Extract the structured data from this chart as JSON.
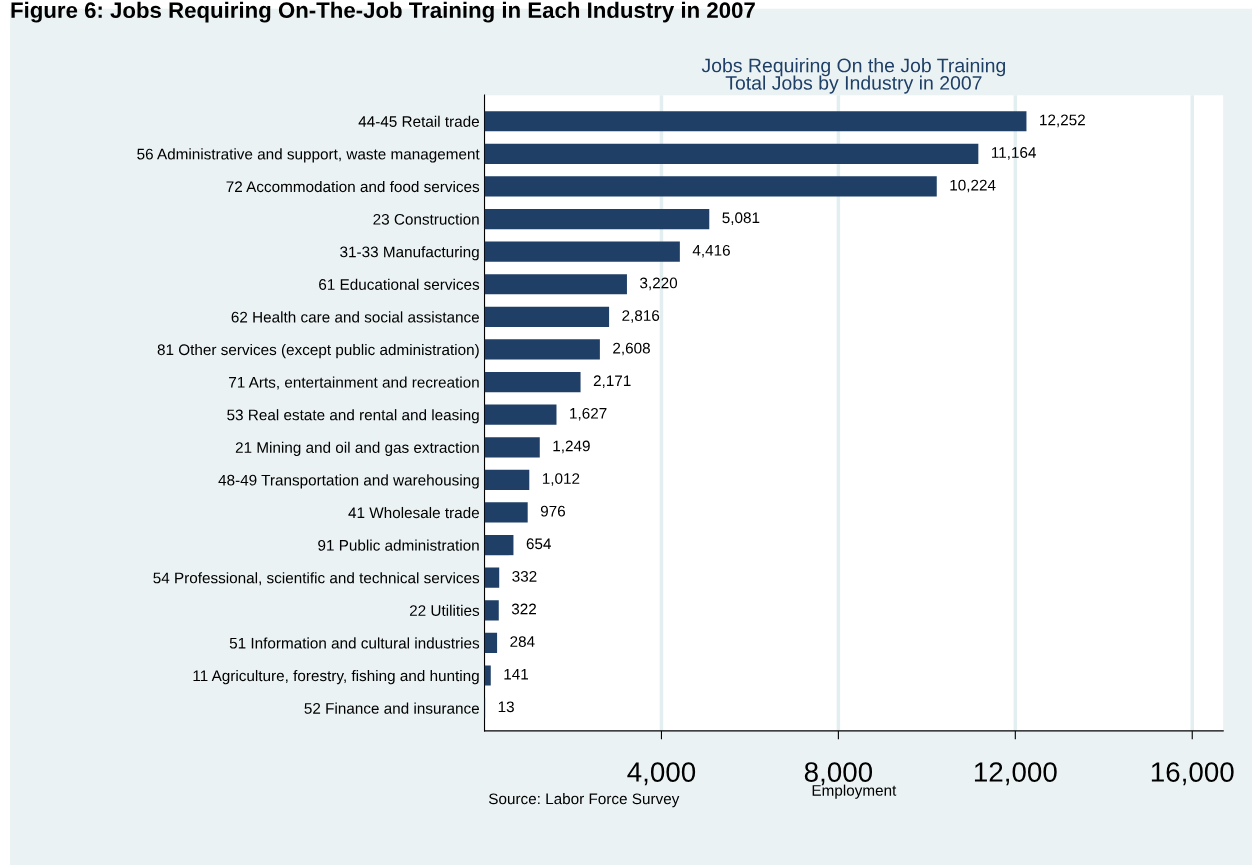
{
  "chart_data": {
    "type": "bar",
    "orientation": "horizontal",
    "title": "Figure 6: Jobs Requiring On-The-Job Training in Each Industry in 2007",
    "subtitle": "Jobs Requiring On the Job Training\nTotal Jobs by Industry in 2007",
    "xlabel": "Employment",
    "categories": [
      "44-45 Retail trade",
      "56 Administrative and support, waste management",
      "72 Accommodation and food services",
      "23 Construction",
      "31-33 Manufacturing",
      "61 Educational services",
      "62 Health care and social assistance",
      "81 Other services (except public administration)",
      "71 Arts, entertainment and recreation",
      "53 Real estate and rental and leasing",
      "21 Mining and oil and gas extraction",
      "48-49 Transportation and warehousing",
      "41 Wholesale trade",
      "91 Public administration",
      "54 Professional, scientific and technical services",
      "22 Utilities",
      "51 Information and cultural industries",
      "11 Agriculture, forestry, fishing and hunting",
      "52 Finance and insurance"
    ],
    "values": [
      12252,
      11164,
      10224,
      5081,
      4416,
      3220,
      2816,
      2608,
      2171,
      1627,
      1249,
      1012,
      976,
      654,
      332,
      322,
      284,
      141,
      13
    ],
    "value_labels": [
      "12,252",
      "11,164",
      "10,224",
      "5,081",
      "4,416",
      "3,220",
      "2,816",
      "2,608",
      "2,171",
      "1,627",
      "1,249",
      "1,012",
      "976",
      "654",
      "332",
      "322",
      "284",
      "141",
      "13"
    ],
    "color": "#1f3f66",
    "xlim": [
      0,
      16700
    ],
    "xticks": [
      {
        "value": 4000,
        "label": "4,000"
      },
      {
        "value": 8000,
        "label": "8,000"
      },
      {
        "value": 12000,
        "label": "12,000"
      },
      {
        "value": 16000,
        "label": "16,000"
      }
    ],
    "grid": "x",
    "annotations": [
      "Source: Labor Force Survey"
    ]
  }
}
